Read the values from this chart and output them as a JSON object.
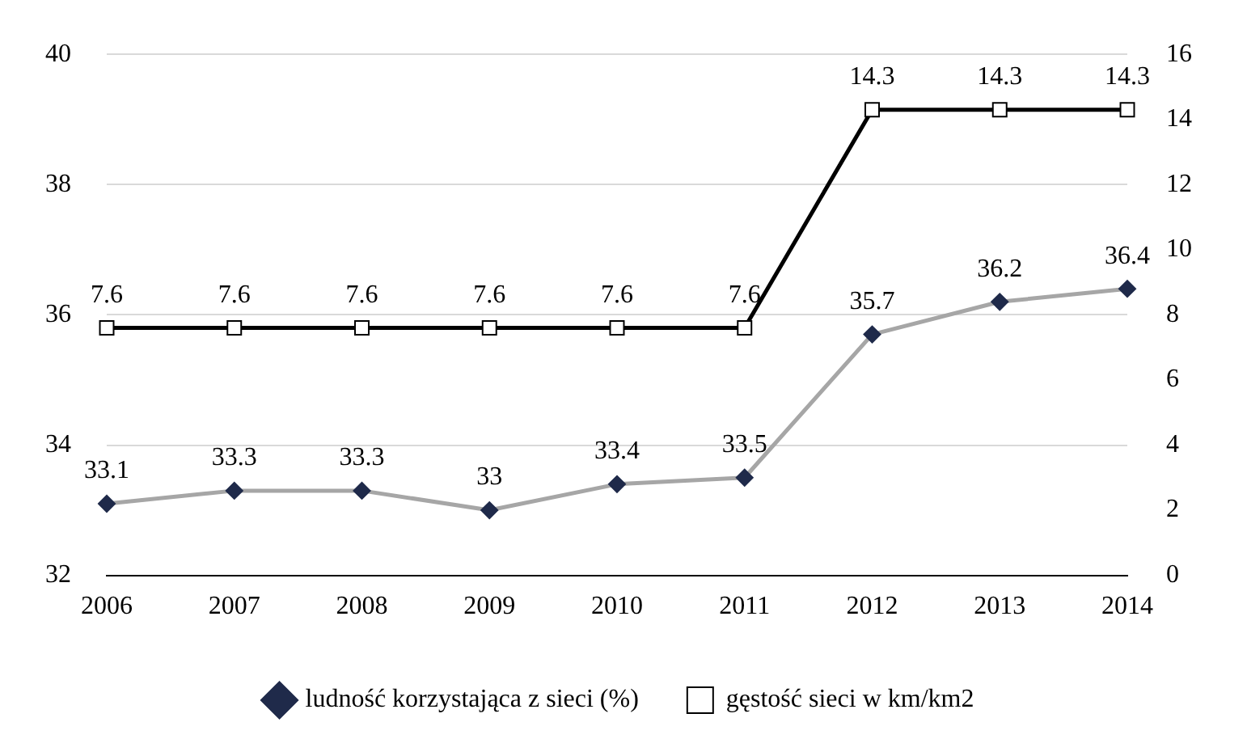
{
  "chart_data": {
    "type": "line",
    "categories": [
      "2006",
      "2007",
      "2008",
      "2009",
      "2010",
      "2011",
      "2012",
      "2013",
      "2014"
    ],
    "series": [
      {
        "name": "ludność korzystająca z sieci (%)",
        "color": "#a6a6a6",
        "colors": [
          "#1f2a4a",
          "#1f2a4a",
          "#1f2a4a",
          "#1f2a4a",
          "#1f2a4a",
          "#1f2a4a",
          "#1f2a4a",
          "#1f2a4a",
          "#1f2a4a"
        ],
        "marker": "diamond",
        "values": [
          33.1,
          33.3,
          33.3,
          33,
          33.4,
          33.5,
          35.7,
          36.2,
          36.4
        ]
      },
      {
        "name": "gęstość sieci w km/km2",
        "color": "#000000",
        "marker": "square",
        "axis": "y2",
        "values": [
          7.6,
          7.6,
          7.6,
          7.6,
          7.6,
          7.6,
          14.3,
          14.3,
          14.3
        ]
      }
    ],
    "ylim": [
      32,
      40
    ],
    "yticks": [
      32,
      34,
      36,
      38,
      40
    ],
    "y2lim": [
      0,
      16
    ],
    "y2ticks": [
      0,
      2,
      4,
      6,
      8,
      10,
      12,
      14,
      16
    ],
    "grid": "y",
    "legend": "bottom",
    "data_labels": true
  }
}
